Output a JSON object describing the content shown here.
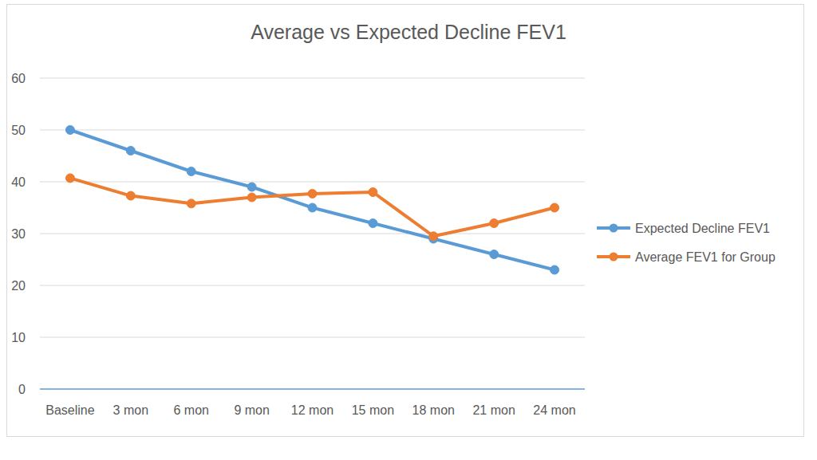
{
  "chart_data": {
    "type": "line",
    "title": "Average vs Expected Decline FEV1",
    "categories": [
      "Baseline",
      "3 mon",
      "6 mon",
      "9 mon",
      "12 mon",
      "15 mon",
      "18 mon",
      "21 mon",
      "24 mon"
    ],
    "series": [
      {
        "name": "Expected Decline FEV1",
        "color": "#5b9bd5",
        "marker": "circle",
        "values": [
          50,
          46,
          42,
          39,
          35,
          32,
          29,
          26,
          23
        ]
      },
      {
        "name": "Average FEV1 for Group",
        "color": "#ed7d31",
        "marker": "circle",
        "values": [
          40.7,
          37.3,
          35.8,
          37,
          37.7,
          38,
          29.5,
          32,
          35
        ]
      }
    ],
    "ylim": [
      0,
      60
    ],
    "yticks": [
      0,
      10,
      20,
      30,
      40,
      50,
      60
    ],
    "grid": true,
    "legend": "right"
  }
}
